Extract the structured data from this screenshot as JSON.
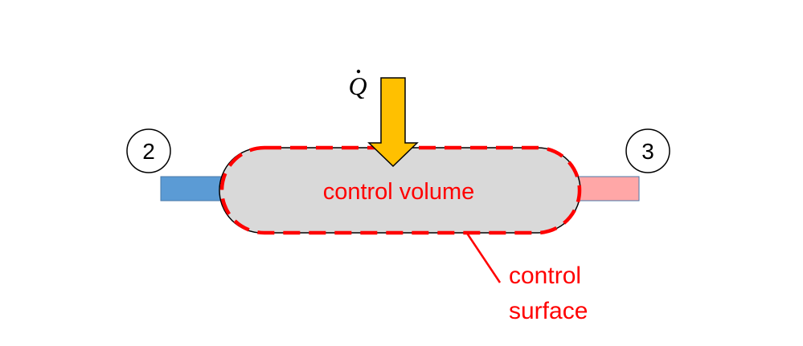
{
  "labels": {
    "control_volume": "control volume",
    "control_surface_line1": "control",
    "control_surface_line2": "surface",
    "state_inlet": "2",
    "state_outlet": "3",
    "heat_rate": "Q"
  },
  "colors": {
    "control_volume_fill": "#d9d9d9",
    "control_surface": "#ff0000",
    "inlet_pipe": "#5b9bd5",
    "outlet_pipe": "#ffa7a7",
    "heat_arrow": "#ffc000",
    "outline": "#000000",
    "background": "#ffffff"
  }
}
